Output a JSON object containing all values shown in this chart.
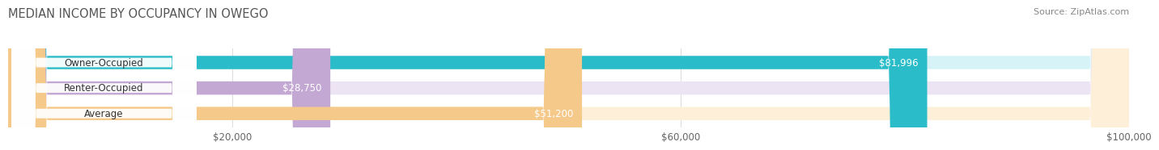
{
  "title": "MEDIAN INCOME BY OCCUPANCY IN OWEGO",
  "source": "Source: ZipAtlas.com",
  "categories": [
    "Owner-Occupied",
    "Renter-Occupied",
    "Average"
  ],
  "values": [
    81996,
    28750,
    51200
  ],
  "labels": [
    "$81,996",
    "$28,750",
    "$51,200"
  ],
  "bar_colors": [
    "#2bbcca",
    "#c4a8d4",
    "#f5c98a"
  ],
  "bar_bg_colors": [
    "#d6f3f7",
    "#ede4f3",
    "#fdefd8"
  ],
  "xlim": [
    0,
    100000
  ],
  "xticks": [
    20000,
    60000,
    100000
  ],
  "xticklabels": [
    "$20,000",
    "$60,000",
    "$100,000"
  ],
  "title_fontsize": 10.5,
  "source_fontsize": 8,
  "label_fontsize": 8.5,
  "bar_height": 0.52,
  "background_color": "#ffffff",
  "grid_color": "#dddddd"
}
